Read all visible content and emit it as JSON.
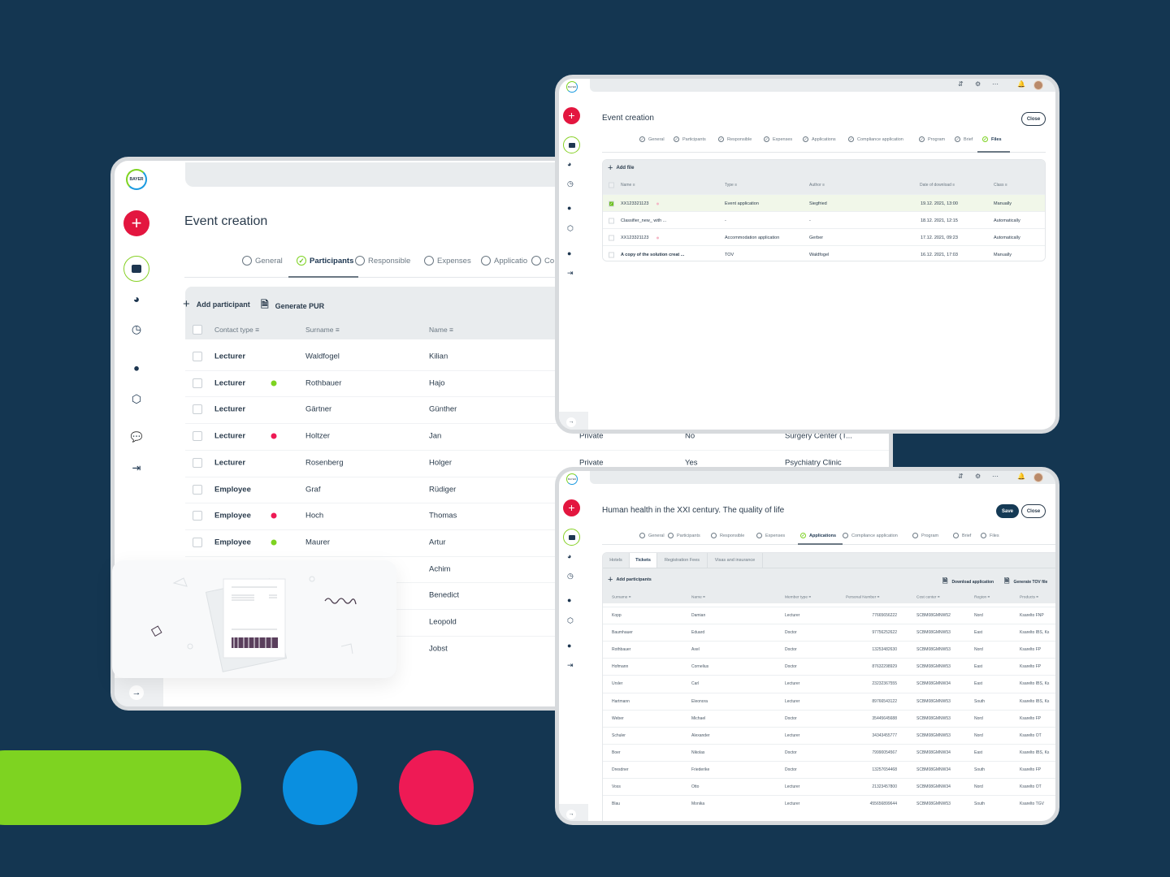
{
  "colors": {
    "background": "#143651",
    "accent_red": "#e3163f",
    "accent_green": "#7ed321",
    "accent_blue": "#0a8fe0",
    "navy": "#1d3650"
  },
  "logo_text": "BAYER",
  "decor": {
    "shapes": [
      "green-pill",
      "blue-circle",
      "red-circle"
    ]
  },
  "window_left": {
    "title": "Event creation",
    "tabs": [
      {
        "label": "General",
        "state": "empty"
      },
      {
        "label": "Participants",
        "state": "active"
      },
      {
        "label": "Responsible",
        "state": "empty"
      },
      {
        "label": "Expenses",
        "state": "empty"
      },
      {
        "label": "Applicatio",
        "state": "empty"
      },
      {
        "label": "Co",
        "state": "empty"
      }
    ],
    "toolbar": {
      "add": "Add participant",
      "generate": "Generate PUR"
    },
    "columns": [
      "Contact type",
      "Surname",
      "Name"
    ],
    "rows": [
      {
        "type": "Lecturer",
        "dot": "",
        "surname": "Waldfogel",
        "name": "Kilian"
      },
      {
        "type": "Lecturer",
        "dot": "green",
        "surname": "Rothbauer",
        "name": "Hajo"
      },
      {
        "type": "Lecturer",
        "dot": "",
        "surname": "Gärtner",
        "name": "Günther"
      },
      {
        "type": "Lecturer",
        "dot": "red",
        "surname": "Holtzer",
        "name": "Jan",
        "c4": "Private",
        "c5": "No",
        "c6": "Surgery Center (T..."
      },
      {
        "type": "Lecturer",
        "dot": "",
        "surname": "Rosenberg",
        "name": "Holger",
        "c4": "Private",
        "c5": "Yes",
        "c6": "Psychiatry Clinic"
      },
      {
        "type": "Employee",
        "dot": "",
        "surname": "Graf",
        "name": "Rüdiger"
      },
      {
        "type": "Employee",
        "dot": "red",
        "surname": "Hoch",
        "name": "Thomas"
      },
      {
        "type": "Employee",
        "dot": "green",
        "surname": "Maurer",
        "name": "Artur"
      },
      {
        "type": "",
        "dot": "",
        "surname": "",
        "name": "Achim"
      },
      {
        "type": "",
        "dot": "",
        "surname": "",
        "name": "Benedict"
      },
      {
        "type": "",
        "dot": "",
        "surname": "",
        "name": "Leopold"
      },
      {
        "type": "",
        "dot": "",
        "surname": "",
        "name": "Jobst"
      }
    ]
  },
  "window_files": {
    "title": "Event creation",
    "close": "Close",
    "tabs": [
      {
        "label": "General",
        "state": "done"
      },
      {
        "label": "Participants",
        "state": "done"
      },
      {
        "label": "Responsible",
        "state": "done"
      },
      {
        "label": "Expenses",
        "state": "done"
      },
      {
        "label": "Applications",
        "state": "done"
      },
      {
        "label": "Compliance application",
        "state": "done"
      },
      {
        "label": "Program",
        "state": "done"
      },
      {
        "label": "Brief",
        "state": "done"
      },
      {
        "label": "Files",
        "state": "active"
      }
    ],
    "add": "Add file",
    "columns": [
      "Name",
      "Type",
      "Author",
      "Date of download",
      "Class"
    ],
    "rows": [
      {
        "checked": true,
        "name": "XX123321123",
        "flag": true,
        "type": "Event application",
        "author": "Siegfried",
        "date": "19.12. 2021, 13:00",
        "class": "Manually"
      },
      {
        "checked": false,
        "name": "Classifier_new_ with ...",
        "flag": false,
        "type": "-",
        "author": "-",
        "date": "18.12. 2021, 12:15",
        "class": "Automatically"
      },
      {
        "checked": false,
        "name": "XX123321123",
        "flag": true,
        "type": "Accommodation application",
        "author": "Gerber",
        "date": "17.12. 2021, 09:23",
        "class": "Automatically"
      },
      {
        "checked": false,
        "name": "A copy of the solution creat ...",
        "flag": false,
        "type": "TOV",
        "author": "Waldfogel",
        "date": "16.12. 2021, 17:03",
        "class": "Manually"
      }
    ]
  },
  "window_apps": {
    "title": "Human health in the XXI century. The quality of life",
    "save": "Save",
    "close": "Close",
    "tabs": [
      {
        "label": "General",
        "state": "empty"
      },
      {
        "label": "Participants",
        "state": "empty"
      },
      {
        "label": "Responsible",
        "state": "empty"
      },
      {
        "label": "Expenses",
        "state": "empty"
      },
      {
        "label": "Applications",
        "state": "active"
      },
      {
        "label": "Compliance application",
        "state": "empty"
      },
      {
        "label": "Program",
        "state": "empty"
      },
      {
        "label": "Brief",
        "state": "empty"
      },
      {
        "label": "Files",
        "state": "empty"
      }
    ],
    "subtabs": [
      "Hotels",
      "Tickets",
      "Registration Fees",
      "Visas and insurance"
    ],
    "active_subtab": "Tickets",
    "add": "Add participants",
    "download": "Download application",
    "generate": "Generate TOV file",
    "columns": [
      "Surname",
      "Name",
      "Member type",
      "Personal Number",
      "Cost center",
      "Region",
      "Products"
    ],
    "rows": [
      [
        "Kopp",
        "Damian",
        "Lecturer",
        "77665656222",
        "SCBM08GMNW52",
        "Nord",
        "Ksarelto FNP"
      ],
      [
        "Baumhauer",
        "Eduard",
        "Doctor",
        "97756252622",
        "SCBM08GMNW53",
        "East",
        "Ksarelto IBS, Ks"
      ],
      [
        "Rothbauer",
        "Axel",
        "Doctor",
        "13253482630",
        "SCBM08GMNW53",
        "Nord",
        "Ksarelto FP"
      ],
      [
        "Hofmann",
        "Cornelius",
        "Doctor",
        "87632298929",
        "SCBM08GMNW53",
        "East",
        "Ksarelto FP"
      ],
      [
        "Ursler",
        "Carl",
        "Lecturer",
        "23232367555",
        "SCBM08GMNW34",
        "East",
        "Ksarelto IBS, Ks"
      ],
      [
        "Hartmann",
        "Eleonora",
        "Lecturer",
        "89766543122",
        "SCBM08GMNW53",
        "South",
        "Ksarelto IBS, Ks"
      ],
      [
        "Weber",
        "Michael",
        "Doctor",
        "35445645688",
        "SCBM08GMNW53",
        "Nord",
        "Ksarelto FP"
      ],
      [
        "Schuler",
        "Alexander",
        "Lecturer",
        "34343455777",
        "SCBM08GMNW53",
        "Nord",
        "Ksarelto OT"
      ],
      [
        "Boer",
        "Nikolas",
        "Doctor",
        "79990054567",
        "SCBM08GMNW34",
        "East",
        "Ksarelto IBS, Ks"
      ],
      [
        "Dresdner",
        "Friederike",
        "Doctor",
        "13257654468",
        "SCBM08GMNW34",
        "South",
        "Ksarelto FP"
      ],
      [
        "Voss",
        "Otto",
        "Lecturer",
        "21323457800",
        "SCBM08GMNW34",
        "Nord",
        "Ksarelto OT"
      ],
      [
        "Blau",
        "Monika",
        "Lecturer",
        "455656899644",
        "SCBM08GMNW53",
        "South",
        "Ksarelto TGV"
      ]
    ]
  }
}
